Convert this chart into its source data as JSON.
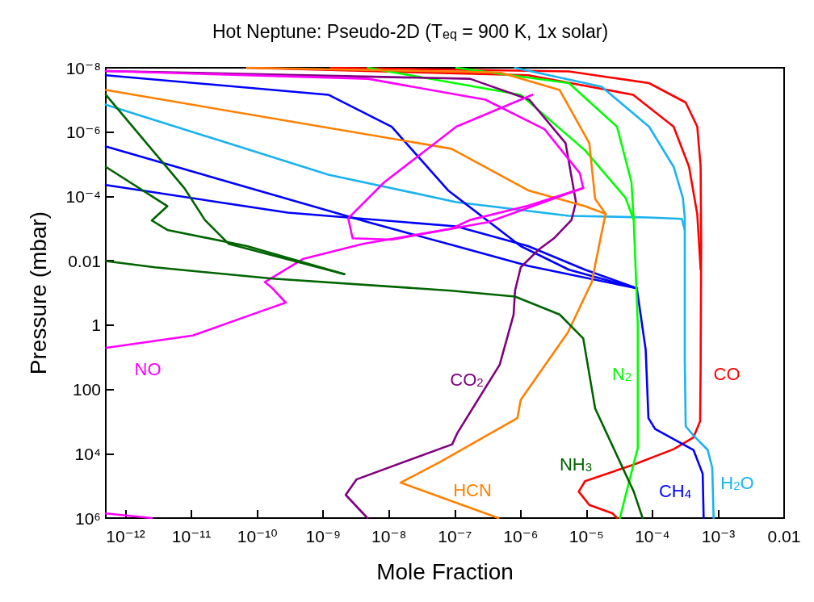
{
  "chart_data": {
    "type": "line",
    "title": "Hot Neptune: Pseudo-2D (T$_{eq}$ = 900 K, 1x solar)",
    "xlabel": "Mole Fraction",
    "ylabel": "Pressure (mbar)",
    "log": "xy",
    "marker": "none",
    "line_style": "solid",
    "xlim": [
      5e-13,
      0.01
    ],
    "xticks": [
      {
        "value": 1e-12,
        "label": "10⁻¹²"
      },
      {
        "value": 1e-11,
        "label": "10⁻¹¹"
      },
      {
        "value": 1e-10,
        "label": "10⁻¹⁰"
      },
      {
        "value": 1e-09,
        "label": "10⁻⁹"
      },
      {
        "value": 1e-08,
        "label": "10⁻⁸"
      },
      {
        "value": 1e-07,
        "label": "10⁻⁷"
      },
      {
        "value": 1e-06,
        "label": "10⁻⁶"
      },
      {
        "value": 1e-05,
        "label": "10⁻⁵"
      },
      {
        "value": 0.0001,
        "label": "10⁻⁴"
      },
      {
        "value": 0.001,
        "label": "10⁻³"
      },
      0.01
    ],
    "ylim": [
      1000000.0,
      1e-08
    ],
    "yticks": [
      {
        "value": 1e-08,
        "label": "10⁻⁸"
      },
      {
        "value": 1e-06,
        "label": "10⁻⁶"
      },
      {
        "value": 0.0001,
        "label": "10⁻⁴"
      },
      0.01,
      1,
      100,
      {
        "value": 10000.0,
        "label": "10⁴"
      },
      {
        "value": 1000000.0,
        "label": "10⁶"
      }
    ],
    "series": [
      {
        "color": "#ff0000",
        "x": [
          1.3e-09,
          5.4e-06,
          8.9e-05,
          0.00032,
          0.00048,
          0.00054,
          0.00055,
          0.00054,
          0.00053,
          0.00042,
          0.00021,
          5.1e-05,
          9.5e-06,
          7.6e-06,
          1.1e-05,
          2.5e-05,
          2.9e-05
        ],
        "values": [
          1e-08,
          1.3e-08,
          3e-08,
          1.2e-07,
          6.8e-07,
          1.2e-05,
          0.0035,
          18,
          980,
          3100,
          7200,
          22000.0,
          71000.0,
          150000.0,
          390000.0,
          720000.0,
          1000000.0
        ]
      },
      {
        "color": "#ff0000",
        "x": [
          7e-11,
          1.3e-06,
          5.1e-05,
          0.00021,
          0.00036,
          0.00048,
          0.00054
        ],
        "values": [
          1e-08,
          1.7e-08,
          6.9e-08,
          6.8e-07,
          1.2e-05,
          0.00036,
          0.019
        ]
      },
      {
        "color": "#1ab2ef",
        "x": [
          8.2e-07,
          1.7e-05,
          8.9e-05,
          0.00021,
          0.00029,
          0.00031,
          0.00031,
          0.00032,
          0.00042,
          0.00069,
          0.00081,
          0.00085
        ],
        "values": [
          1e-08,
          3.9e-08,
          6.8e-07,
          1.2e-05,
          0.00011,
          0.00045,
          11,
          1400,
          2700,
          7600,
          27000.0,
          1000000.0
        ]
      },
      {
        "color": "#1ab2ef",
        "x": [
          5e-13,
          1.2e-09,
          1.05e-07,
          5.4e-06,
          8.9e-05,
          0.00028,
          0.00031
        ],
        "values": [
          1.4e-07,
          2.1e-05,
          0.00015,
          0.0004,
          0.00045,
          0.0005,
          0.0011
        ]
      },
      {
        "color": "#0000ff",
        "x": [
          5e-13,
          2.9e-10,
          1.05e-07,
          1.3e-06,
          9.5e-06,
          5.8e-05,
          7.9e-05,
          8.7e-05,
          0.00011,
          0.00042,
          0.00058,
          0.0006
        ],
        "values": [
          4.4e-05,
          0.00032,
          0.00085,
          0.0035,
          0.019,
          0.072,
          5.8,
          780,
          1700,
          7600,
          42000.0,
          1000000.0
        ]
      },
      {
        "color": "#0000ff",
        "x": [
          5e-13,
          1.2e-09,
          1.1e-08,
          7.9e-08,
          1e-06,
          5.4e-06,
          5.8e-05
        ],
        "values": [
          1.7e-08,
          6.9e-08,
          6.8e-07,
          6.5e-05,
          0.0035,
          0.019,
          0.072
        ]
      },
      {
        "color": "#0000ff",
        "x": [
          5e-13,
          4.8e-09,
          1.05e-07,
          1.3e-06,
          5.8e-05
        ],
        "values": [
          2.8e-06,
          0.00063,
          0.0035,
          0.0145,
          0.072
        ]
      },
      {
        "color": "#00ff00",
        "x": [
          1.05e-07,
          5.4e-06,
          2.9e-05,
          4.8e-05,
          5.2e-05,
          6e-05,
          6e-05,
          3.2e-05
        ],
        "values": [
          1e-08,
          3e-08,
          6.8e-07,
          3.6e-05,
          0.00054,
          1,
          6500,
          1000000.0
        ]
      },
      {
        "color": "#00ff00",
        "x": [
          4.8e-09,
          1e-06,
          9.5e-06,
          3.9e-05,
          5.2e-05
        ],
        "values": [
          1e-08,
          6.9e-08,
          3.7e-06,
          0.00011,
          0.00054
        ]
      },
      {
        "color": "#800080",
        "x": [
          5e-13,
          1.7e-07,
          1.35e-06,
          4.8e-06,
          6.9e-06,
          5.9e-06,
          3.2e-06,
          1.9e-06,
          1e-06,
          8.2e-07,
          7.8e-07,
          4.8e-07,
          1.1e-07,
          9.1e-08,
          3.2e-09,
          2.2e-09,
          4.7e-09
        ],
        "values": [
          1.26e-08,
          2.2e-08,
          9.8e-08,
          2.2e-06,
          0.00015,
          0.00054,
          0.002,
          0.0044,
          0.016,
          0.085,
          0.47,
          17,
          2200,
          5100,
          63000.0,
          190000.0,
          1000000.0
        ]
      },
      {
        "color": "#ff8000",
        "x": [
          7e-11,
          4.8e-07,
          3.9e-06,
          1.1e-05,
          1.35e-05,
          1.95e-05,
          1.7e-05,
          1.2e-05,
          5.2e-06,
          1e-06,
          8.9e-07,
          6e-08,
          1.5e-08,
          4.6e-07
        ],
        "values": [
          1e-08,
          1.4e-08,
          4.9e-08,
          2.2e-06,
          0.00012,
          0.00035,
          0.0013,
          0.046,
          1.7,
          210,
          780,
          18000.0,
          79000.0,
          1000000.0
        ]
      },
      {
        "color": "#ff8000",
        "x": [
          5e-13,
          8.9e-08,
          1.3e-06,
          9.5e-06,
          1.95e-05
        ],
        "values": [
          4.9e-08,
          3.3e-06,
          6.5e-05,
          0.0002,
          0.00035
        ]
      },
      {
        "color": "#ff00ff",
        "x": [
          5e-13,
          4.8e-09,
          2.9e-07,
          2.3e-06,
          7.9e-06,
          8.9e-06,
          1.35e-06,
          1.7e-07,
          8.9e-08,
          4e-09,
          5e-10,
          1.3e-10,
          1.7e-10,
          2.7e-10,
          1.15e-10,
          1.05e-11,
          5.1e-13
        ],
        "values": [
          1.26e-08,
          2.2e-08,
          9.8e-08,
          8.1e-07,
          1.9e-05,
          5.5e-05,
          0.00019,
          0.00054,
          0.001,
          0.003,
          0.0087,
          0.046,
          0.072,
          0.2,
          0.37,
          2.1,
          5.1
        ]
      },
      {
        "color": "#ff00ff",
        "x": [
          1.5e-06,
          1.05e-07,
          8.5e-09,
          2.4e-09,
          2.8e-09,
          1.1e-08,
          3.2e-07,
          8.9e-06
        ],
        "values": [
          6.9e-08,
          6.8e-07,
          3.6e-05,
          0.00048,
          0.002,
          0.0022,
          0.00063,
          5.5e-05
        ]
      },
      {
        "color": "#ff00ff",
        "x": [
          5e-13,
          2.5e-12
        ],
        "values": [
          720000.0,
          1000000.0
        ]
      },
      {
        "color": "#006400",
        "x": [
          5e-13,
          2.8e-12,
          1.7e-10,
          8.9e-08,
          8.2e-07,
          3.9e-06,
          8.9e-06,
          1.35e-05,
          5.2e-05,
          7.1e-05
        ],
        "values": [
          0.0102,
          0.016,
          0.036,
          0.085,
          0.13,
          0.47,
          2.6,
          390,
          150000.0,
          1000000.0
        ]
      },
      {
        "color": "#006400",
        "x": [
          5e-13,
          7.8e-12,
          1.6e-11,
          3.7e-11,
          2.1e-09
        ],
        "values": [
          6.9e-08,
          5.5e-05,
          0.00054,
          0.003,
          0.026
        ]
      },
      {
        "color": "#006400",
        "x": [
          5e-13,
          4.3e-12,
          2.5e-12,
          4.3e-12,
          7e-11,
          2.1e-09
        ],
        "values": [
          1.2e-05,
          0.0002,
          0.00056,
          0.0011,
          0.0035,
          0.026
        ]
      }
    ],
    "annotations": [
      "CO",
      "H$_{2}$O",
      "CH$_{4}$",
      "N$_{2}$",
      "CO$_{2}$",
      "HCN",
      "NO",
      "NH$_{3}$"
    ]
  }
}
